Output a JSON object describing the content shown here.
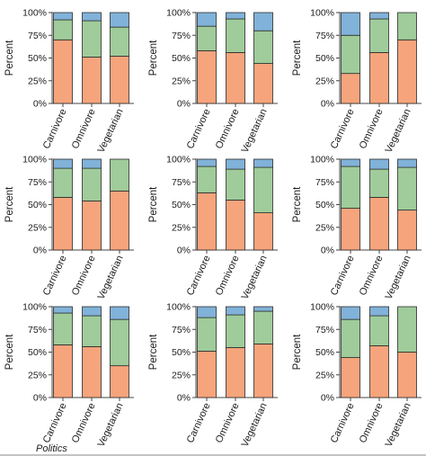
{
  "caption": "Politics",
  "colors": {
    "bottom_segment": "#f6a47c",
    "middle_segment": "#9fcc9a",
    "top_segment": "#81b2d9"
  },
  "chart_data": [
    {
      "type": "bar",
      "stacked": true,
      "ylabel": "Percent",
      "ylim": [
        0,
        100
      ],
      "yticks": [
        "0%",
        "25%",
        "50%",
        "75%",
        "100%"
      ],
      "categories": [
        "Carnivore",
        "Omnivore",
        "Vegetarian"
      ],
      "series": [
        {
          "values": [
            70,
            51,
            52
          ]
        },
        {
          "values": [
            22,
            40,
            32
          ]
        },
        {
          "values": [
            8,
            9,
            16
          ]
        }
      ]
    },
    {
      "type": "bar",
      "stacked": true,
      "ylabel": "Percent",
      "ylim": [
        0,
        100
      ],
      "yticks": [
        "0%",
        "25%",
        "50%",
        "75%",
        "100%"
      ],
      "categories": [
        "Carnivore",
        "Omnivore",
        "Vegetarian"
      ],
      "series": [
        {
          "values": [
            58,
            56,
            44
          ]
        },
        {
          "values": [
            27,
            37,
            36
          ]
        },
        {
          "values": [
            15,
            7,
            20
          ]
        }
      ]
    },
    {
      "type": "bar",
      "stacked": true,
      "ylabel": "Percent",
      "ylim": [
        0,
        100
      ],
      "yticks": [
        "0%",
        "25%",
        "50%",
        "75%",
        "100%"
      ],
      "categories": [
        "Carnivore",
        "Omnivore",
        "Vegetarian"
      ],
      "series": [
        {
          "values": [
            33,
            56,
            70
          ]
        },
        {
          "values": [
            42,
            37,
            30
          ]
        },
        {
          "values": [
            25,
            7,
            0
          ]
        }
      ]
    },
    {
      "type": "bar",
      "stacked": true,
      "ylabel": "Percent",
      "ylim": [
        0,
        100
      ],
      "yticks": [
        "0%",
        "25%",
        "50%",
        "75%",
        "100%"
      ],
      "categories": [
        "Carnivore",
        "Omnivore",
        "Vegetarian"
      ],
      "series": [
        {
          "values": [
            58,
            54,
            65
          ]
        },
        {
          "values": [
            32,
            36,
            35
          ]
        },
        {
          "values": [
            10,
            10,
            0
          ]
        }
      ]
    },
    {
      "type": "bar",
      "stacked": true,
      "ylabel": "Percent",
      "ylim": [
        0,
        100
      ],
      "yticks": [
        "0%",
        "25%",
        "50%",
        "75%",
        "100%"
      ],
      "categories": [
        "Carnivore",
        "Omnivore",
        "Vegetarian"
      ],
      "series": [
        {
          "values": [
            63,
            55,
            41
          ]
        },
        {
          "values": [
            29,
            34,
            50
          ]
        },
        {
          "values": [
            8,
            11,
            9
          ]
        }
      ]
    },
    {
      "type": "bar",
      "stacked": true,
      "ylabel": "Percent",
      "ylim": [
        0,
        100
      ],
      "yticks": [
        "0%",
        "25%",
        "50%",
        "75%",
        "100%"
      ],
      "categories": [
        "Carnivore",
        "Omnivore",
        "Vegetarian"
      ],
      "series": [
        {
          "values": [
            46,
            58,
            44
          ]
        },
        {
          "values": [
            46,
            31,
            47
          ]
        },
        {
          "values": [
            8,
            11,
            9
          ]
        }
      ]
    },
    {
      "type": "bar",
      "stacked": true,
      "ylabel": "Percent",
      "ylim": [
        0,
        100
      ],
      "yticks": [
        "0%",
        "25%",
        "50%",
        "75%",
        "100%"
      ],
      "categories": [
        "Carnivore",
        "Omnivore",
        "Vegetarian"
      ],
      "series": [
        {
          "values": [
            58,
            56,
            35
          ]
        },
        {
          "values": [
            35,
            34,
            51
          ]
        },
        {
          "values": [
            7,
            10,
            14
          ]
        }
      ]
    },
    {
      "type": "bar",
      "stacked": true,
      "ylabel": "Percent",
      "ylim": [
        0,
        100
      ],
      "yticks": [
        "0%",
        "25%",
        "50%",
        "75%",
        "100%"
      ],
      "categories": [
        "Carnivore",
        "Omnivore",
        "Vegetarian"
      ],
      "series": [
        {
          "values": [
            51,
            55,
            59
          ]
        },
        {
          "values": [
            37,
            36,
            36
          ]
        },
        {
          "values": [
            12,
            9,
            5
          ]
        }
      ]
    },
    {
      "type": "bar",
      "stacked": true,
      "ylabel": "Percent",
      "ylim": [
        0,
        100
      ],
      "yticks": [
        "0%",
        "25%",
        "50%",
        "75%",
        "100%"
      ],
      "categories": [
        "Carnivore",
        "Omnivore",
        "Vegetarian"
      ],
      "series": [
        {
          "values": [
            44,
            57,
            50
          ]
        },
        {
          "values": [
            42,
            33,
            50
          ]
        },
        {
          "values": [
            14,
            10,
            0
          ]
        }
      ]
    }
  ]
}
